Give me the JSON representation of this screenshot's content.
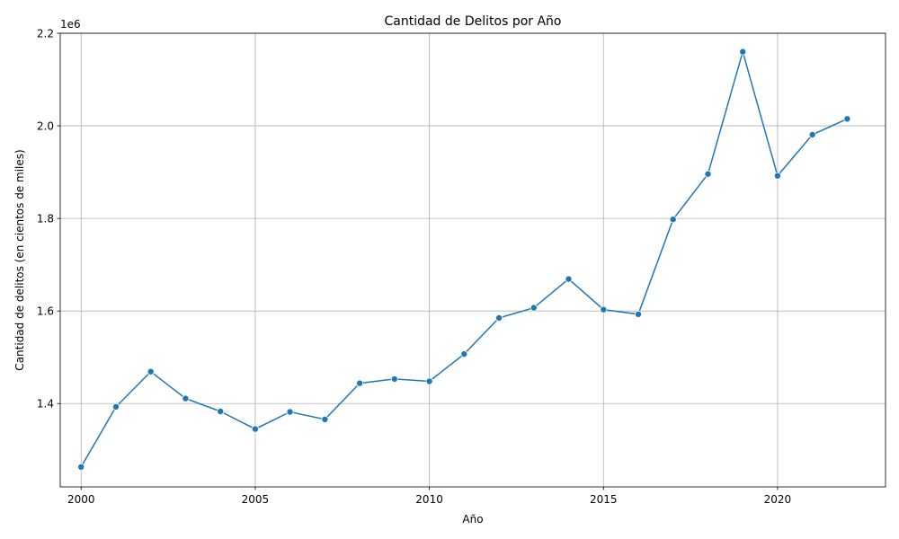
{
  "chart_data": {
    "type": "line",
    "title": "Cantidad de Delitos por Año",
    "xlabel": "Año",
    "ylabel": "Cantidad de delitos (en cientos de miles)",
    "y_offset_text": "1e6",
    "xlim": [
      1999.4,
      2023.1
    ],
    "ylim": [
      1.22,
      2.2
    ],
    "x_ticks": [
      2000,
      2005,
      2010,
      2015,
      2020
    ],
    "x_tick_labels": [
      "2000",
      "2005",
      "2010",
      "2015",
      "2020"
    ],
    "y_ticks": [
      1.4,
      1.6,
      1.8,
      2.0,
      2.2
    ],
    "y_tick_labels": [
      "1.4",
      "1.6",
      "1.8",
      "2.0",
      "2.2"
    ],
    "grid": true,
    "x": [
      2000,
      2001,
      2002,
      2003,
      2004,
      2005,
      2006,
      2007,
      2008,
      2009,
      2010,
      2011,
      2012,
      2013,
      2014,
      2015,
      2016,
      2017,
      2018,
      2019,
      2020,
      2021,
      2022
    ],
    "series": [
      {
        "color": "#1f77b4",
        "marker": "circle",
        "values": [
          1.263,
          1.393,
          1.469,
          1.411,
          1.383,
          1.345,
          1.382,
          1.366,
          1.444,
          1.453,
          1.448,
          1.507,
          1.585,
          1.607,
          1.669,
          1.603,
          1.593,
          1.798,
          1.896,
          2.16,
          1.892,
          1.981,
          2.015
        ]
      }
    ]
  }
}
